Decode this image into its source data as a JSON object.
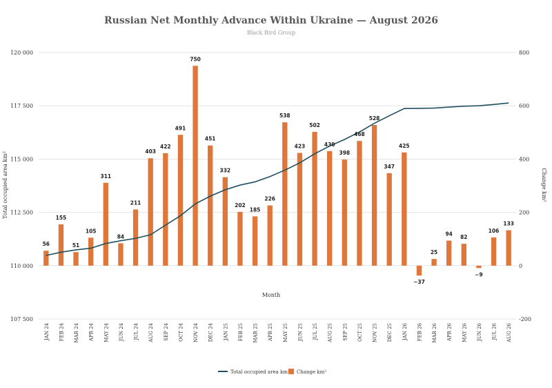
{
  "chart_data": {
    "type": "bar",
    "title": "Russian Net Monthly Advance Within Ukraine — August 2026",
    "subtitle": "Black Bird Group",
    "xlabel": "Month",
    "ylabel_left": "Total occupied area km²",
    "ylabel_right": "Change km²",
    "ylim_left": [
      107500,
      120000
    ],
    "yticks_left": [
      "107 500",
      "110 000",
      "112 500",
      "115 000",
      "117 500",
      "120 000"
    ],
    "ylim_right": [
      -200,
      800
    ],
    "yticks_right": [
      "-200",
      "0",
      "200",
      "400",
      "600",
      "800"
    ],
    "grid": true,
    "legend_position": "bottom",
    "categories": [
      "JAN 24",
      "FEB 24",
      "MAR 24",
      "APR 24",
      "MAY 24",
      "JUN 24",
      "JUL 24",
      "AUG 24",
      "SEP 24",
      "OCT 24",
      "NOV 24",
      "DEC 24",
      "JAN 25",
      "FEB 25",
      "MAR 25",
      "APR 25",
      "MAY 25",
      "JUN 25",
      "JUL 25",
      "AUG 25",
      "SEP 25",
      "OCT 25",
      "NOV 25",
      "DEC 25",
      "JAN 26",
      "FEB 26",
      "MAR 26",
      "APR 26",
      "MAY 26",
      "JUN 26",
      "JUL 26",
      "AUG 26"
    ],
    "series": [
      {
        "name": "Change km²",
        "type": "bar",
        "axis": "right",
        "color": "#e0773a",
        "values": [
          56,
          155,
          51,
          105,
          311,
          84,
          211,
          403,
          422,
          491,
          750,
          451,
          332,
          202,
          185,
          226,
          538,
          423,
          502,
          430,
          398,
          468,
          528,
          347,
          425,
          -37,
          25,
          94,
          82,
          -9,
          106,
          133
        ],
        "labels": [
          "56",
          "155",
          "51",
          "105",
          "311",
          "84",
          "211",
          "403",
          "422",
          "491",
          "750",
          "451",
          "332",
          "202",
          "185",
          "226",
          "538",
          "423",
          "502",
          "430",
          "398",
          "468",
          "528",
          "347",
          "425",
          "−37",
          "25",
          "94",
          "82",
          "−9",
          "106",
          "133"
        ]
      },
      {
        "name": "Total occupied area km²",
        "type": "line",
        "axis": "left",
        "color": "#1f4e5f",
        "values": [
          110480,
          110630,
          110740,
          110820,
          111040,
          111170,
          111280,
          111450,
          111900,
          112340,
          112900,
          113260,
          113560,
          113780,
          113930,
          114180,
          114480,
          114820,
          115250,
          115610,
          115920,
          116270,
          116680,
          117030,
          117370,
          117380,
          117390,
          117440,
          117480,
          117500,
          117560,
          117630
        ]
      }
    ]
  }
}
